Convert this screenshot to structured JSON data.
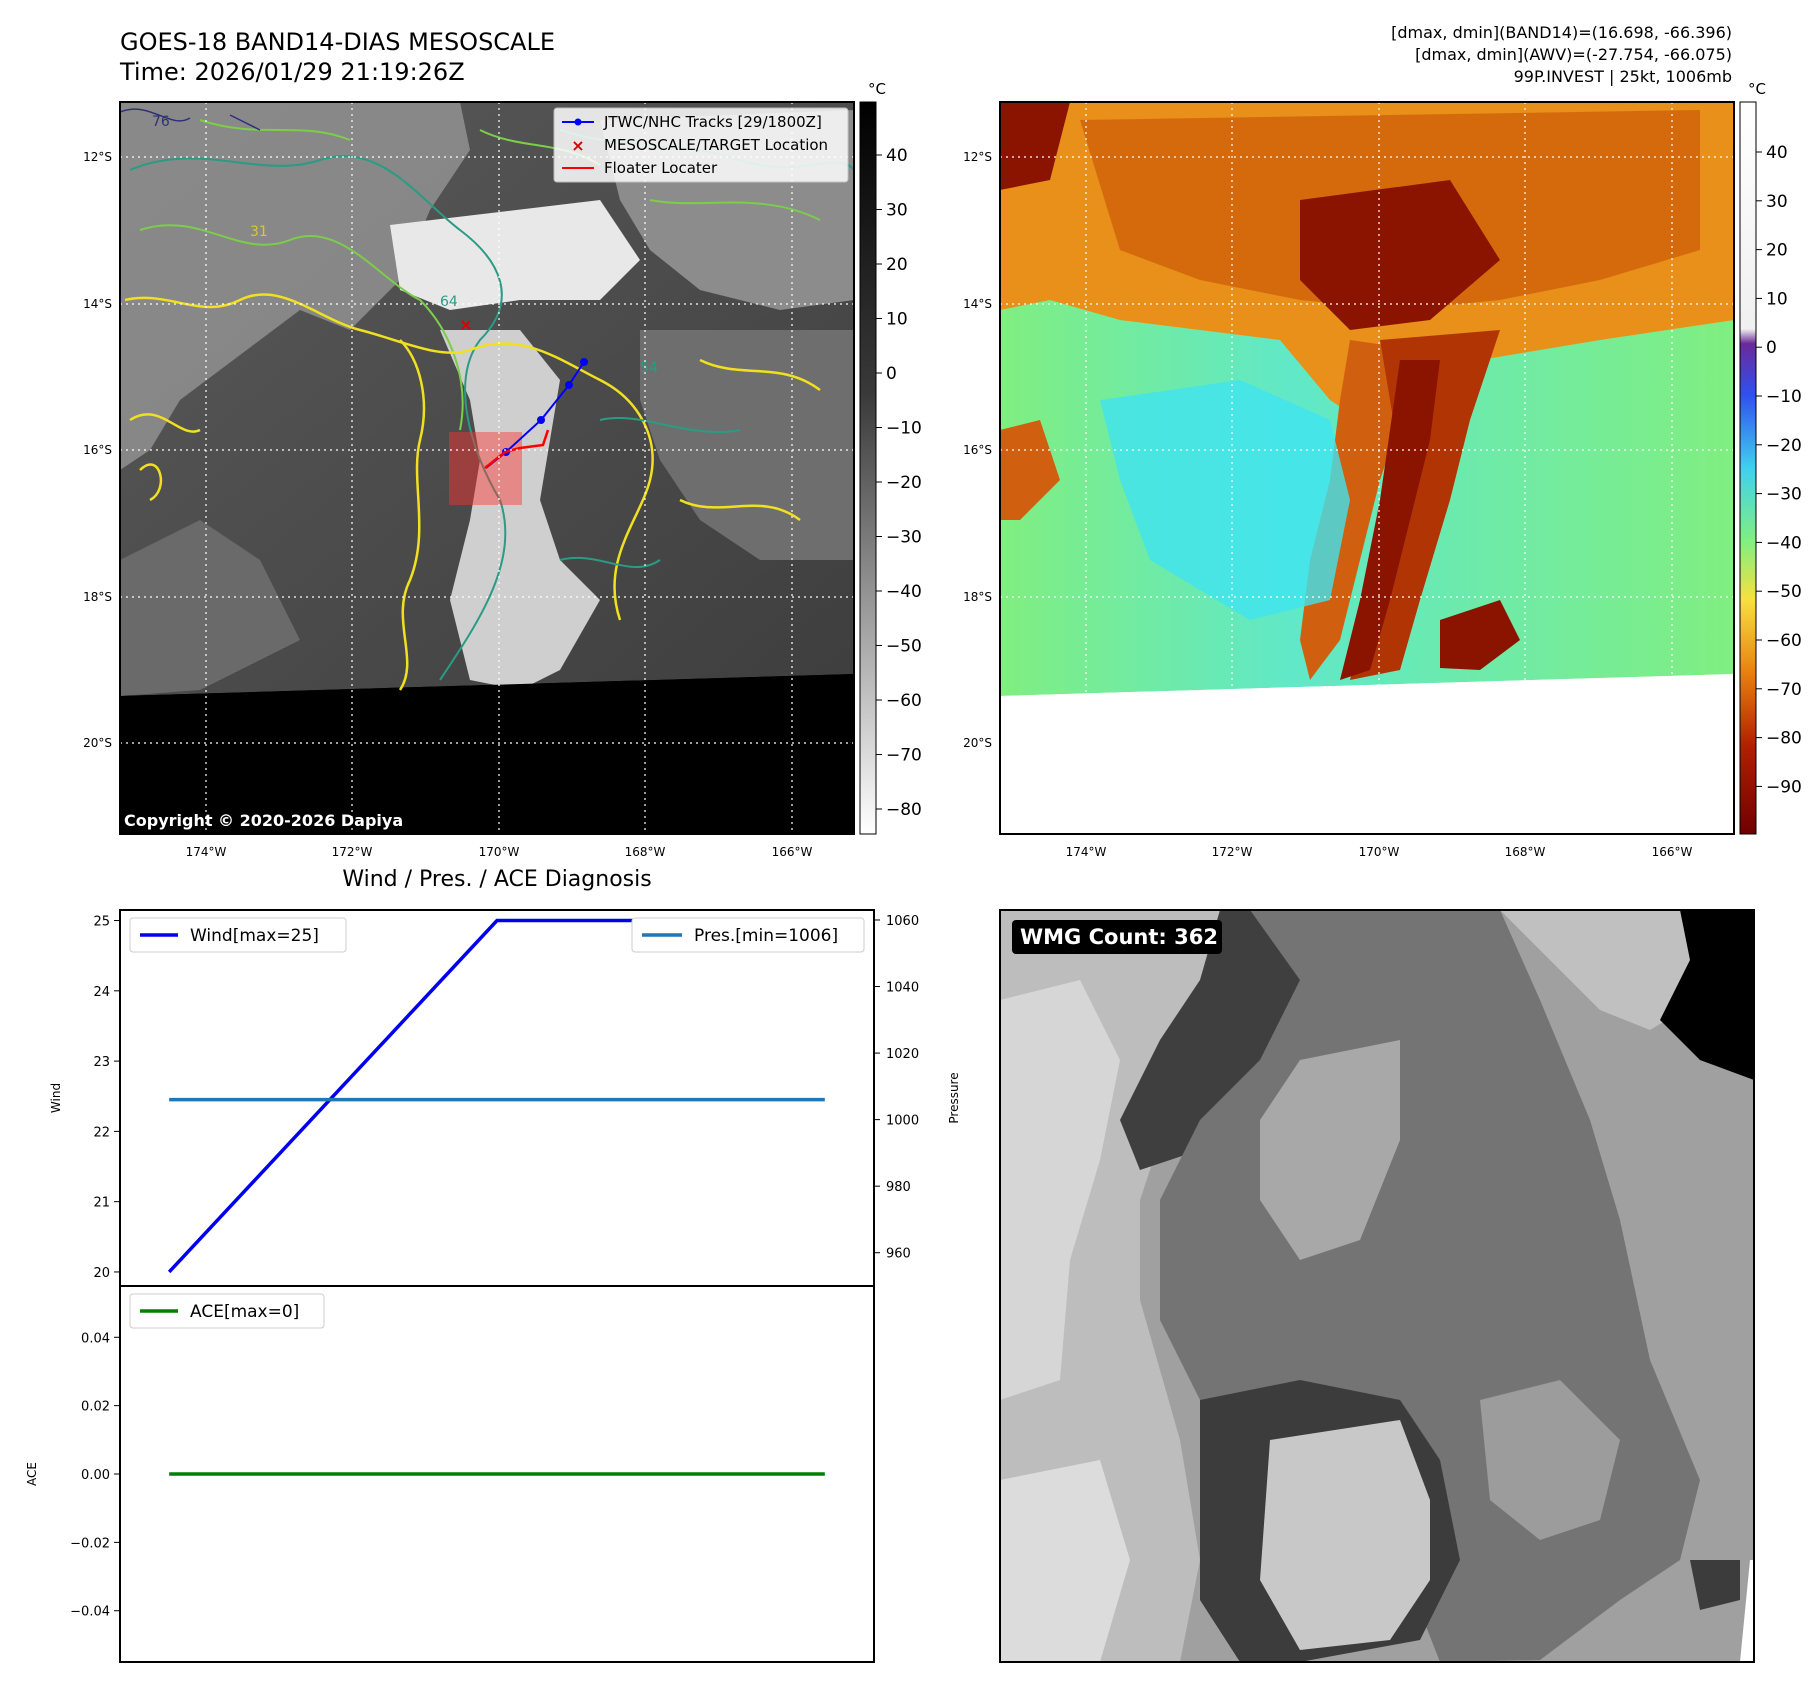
{
  "header": {
    "title": "GOES-18 BAND14-DIAS MESOSCALE",
    "time": "Time: 2026/01/29 21:19:26Z",
    "stats_band14": "[dmax, dmin](BAND14)=(16.698, -66.396)",
    "stats_awv": "[dmax, dmin](AWV)=(-27.754, -66.075)",
    "storm": "99P.INVEST | 25kt, 1006mb"
  },
  "map_common": {
    "lon_ticks": [
      "174°W",
      "172°W",
      "170°W",
      "168°W",
      "166°W"
    ],
    "lat_ticks": [
      "12°S",
      "14°S",
      "16°S",
      "18°S",
      "20°S"
    ]
  },
  "panel_ir": {
    "legend": [
      "JTWC/NHC Tracks [29/1800Z]",
      "MESOSCALE/TARGET Location",
      "Floater Locater"
    ],
    "copyright": "Copyright © 2020-2026 Dapiya",
    "contour_labels": [
      "31",
      "54",
      "64",
      "76"
    ],
    "colorbar_unit": "°C",
    "colorbar_ticks": [
      "40",
      "30",
      "20",
      "10",
      "0",
      "−10",
      "−20",
      "−30",
      "−40",
      "−50",
      "−60",
      "−70",
      "−80"
    ],
    "track_color": "#0000ff",
    "floater_color": "#ff0000"
  },
  "panel_awv": {
    "colorbar_unit": "°C",
    "colorbar_ticks": [
      "40",
      "30",
      "20",
      "10",
      "0",
      "−10",
      "−20",
      "−30",
      "−40",
      "−50",
      "−60",
      "−70",
      "−80",
      "−90"
    ]
  },
  "panel_diag": {
    "title": "Wind / Pres. / ACE Diagnosis",
    "wind_ylabel": "Wind",
    "pres_ylabel": "Pressure",
    "ace_ylabel": "ACE",
    "wind_ticks": [
      "25",
      "24",
      "23",
      "22",
      "21",
      "20"
    ],
    "pres_ticks": [
      "1060",
      "1040",
      "1020",
      "1000",
      "980",
      "960"
    ],
    "ace_ticks": [
      "0.04",
      "0.02",
      "0.00",
      "−0.02",
      "−0.04"
    ],
    "legend_wind": "Wind[max=25]",
    "legend_pres": "Pres.[min=1006]",
    "legend_ace": "ACE[max=0]"
  },
  "panel_wmg": {
    "label": "WMG Count: 362"
  },
  "chart_data": [
    {
      "type": "line",
      "title": "Wind / Pres. / ACE Diagnosis",
      "xlabel": "",
      "ylabel": "Wind",
      "ylim": [
        19.8,
        25.15
      ],
      "x": [
        0,
        1,
        2
      ],
      "series": [
        {
          "name": "Wind[max=25]",
          "values": [
            20,
            25,
            25
          ],
          "color": "#0000ee"
        }
      ]
    },
    {
      "type": "line",
      "ylabel": "Pressure",
      "ylim": [
        950,
        1063
      ],
      "x": [
        0,
        2
      ],
      "series": [
        {
          "name": "Pres.[min=1006]",
          "values": [
            1006,
            1006
          ],
          "color": "#1f77b4"
        }
      ]
    },
    {
      "type": "line",
      "ylabel": "ACE",
      "ylim": [
        -0.055,
        0.055
      ],
      "x": [
        0,
        2
      ],
      "series": [
        {
          "name": "ACE[max=0]",
          "values": [
            0,
            0
          ],
          "color": "#008000"
        }
      ]
    }
  ]
}
